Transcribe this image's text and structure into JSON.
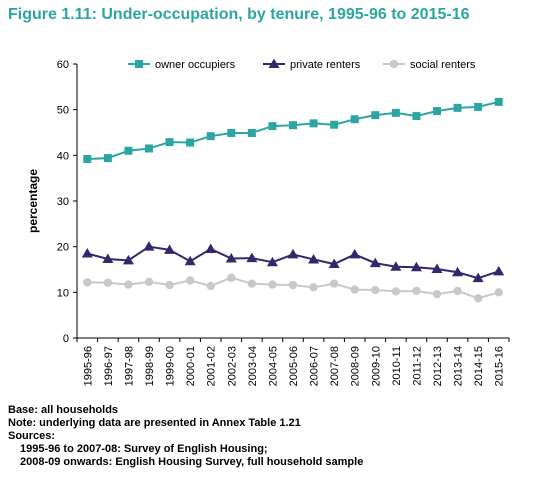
{
  "figure": {
    "title": "Figure 1.11: Under-occupation, by tenure, 1995-96 to 2015-16",
    "title_color": "#2ba6a0"
  },
  "chart_data": {
    "type": "line",
    "title": "",
    "xlabel": "",
    "ylabel": "percentage",
    "ylim": [
      0,
      60
    ],
    "yticks": [
      0,
      10,
      20,
      30,
      40,
      50,
      60
    ],
    "grid": false,
    "legend_position": "top",
    "categories": [
      "1995-96",
      "1996-97",
      "1997-98",
      "1998-99",
      "1999-00",
      "2000-01",
      "2001-02",
      "2002-03",
      "2003-04",
      "2004-05",
      "2005-06",
      "2006-07",
      "2007-08",
      "2008-09",
      "2009-10",
      "2010-11",
      "2011-12",
      "2012-13",
      "2013-14",
      "2014-15",
      "2015-16"
    ],
    "series": [
      {
        "name": "owner occupiers",
        "marker": "square",
        "color": "#2ba6a0",
        "values": [
          39.2,
          39.4,
          41.0,
          41.5,
          42.9,
          42.8,
          44.2,
          44.9,
          44.9,
          46.4,
          46.6,
          47.0,
          46.7,
          47.9,
          48.8,
          49.3,
          48.6,
          49.7,
          50.4,
          50.6,
          51.7
        ]
      },
      {
        "name": "private renters",
        "marker": "triangle",
        "color": "#2e2a6b",
        "values": [
          18.5,
          17.3,
          17.0,
          20.0,
          19.3,
          16.8,
          19.5,
          17.4,
          17.5,
          16.6,
          18.3,
          17.2,
          16.2,
          18.3,
          16.4,
          15.6,
          15.5,
          15.1,
          14.4,
          13.1,
          14.6
        ]
      },
      {
        "name": "social renters",
        "marker": "circle",
        "color": "#c8c8c8",
        "values": [
          12.2,
          12.1,
          11.7,
          12.3,
          11.6,
          12.6,
          11.4,
          13.2,
          11.9,
          11.7,
          11.6,
          11.1,
          11.9,
          10.6,
          10.5,
          10.2,
          10.3,
          9.6,
          10.3,
          8.7,
          10.0
        ]
      }
    ]
  },
  "notes": {
    "base": "Base: all households",
    "note": "Note: underlying data are presented in Annex Table 1.21",
    "sources_label": "Sources:",
    "source1": "1995-96 to 2007-08: Survey of English Housing;",
    "source2": "2008-09 onwards: English Housing Survey, full household sample"
  }
}
